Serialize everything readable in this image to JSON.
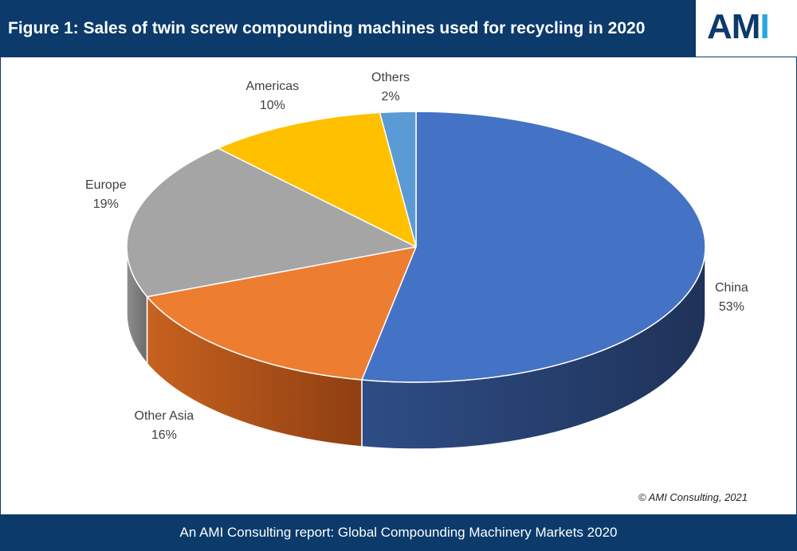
{
  "header": {
    "title": "Figure 1: Sales of twin screw compounding  machines used for recycling in 2020",
    "logo_main": "AM",
    "logo_accent": "I"
  },
  "chart_data": {
    "type": "pie",
    "title": "Figure 1: Sales of twin screw compounding  machines used for recycling in 2020",
    "unit": "%",
    "slices": [
      {
        "name": "China",
        "value": 53,
        "label": "53%",
        "color": "#4472c4",
        "side_dark": "#1f3359",
        "side_light": "#2e4d86"
      },
      {
        "name": "Other Asia",
        "value": 16,
        "label": "16%",
        "color": "#ed7d31",
        "side_dark": "#8f3f12",
        "side_light": "#c7621f"
      },
      {
        "name": "Europe",
        "value": 19,
        "label": "19%",
        "color": "#a5a5a5",
        "side_dark": "#6b6b6b",
        "side_light": "#8e8e8e"
      },
      {
        "name": "Americas",
        "value": 10,
        "label": "10%",
        "color": "#ffc000",
        "side_dark": "#b38600",
        "side_light": "#d9a300"
      },
      {
        "name": "Others",
        "value": 2,
        "label": "2%",
        "color": "#5b9bd5",
        "side_dark": "#2f5f8a",
        "side_light": "#3f7ab0"
      }
    ]
  },
  "copyright": "© AMI Consulting, 2021",
  "footer": "An AMI Consulting report: Global Compounding Machinery Markets 2020"
}
